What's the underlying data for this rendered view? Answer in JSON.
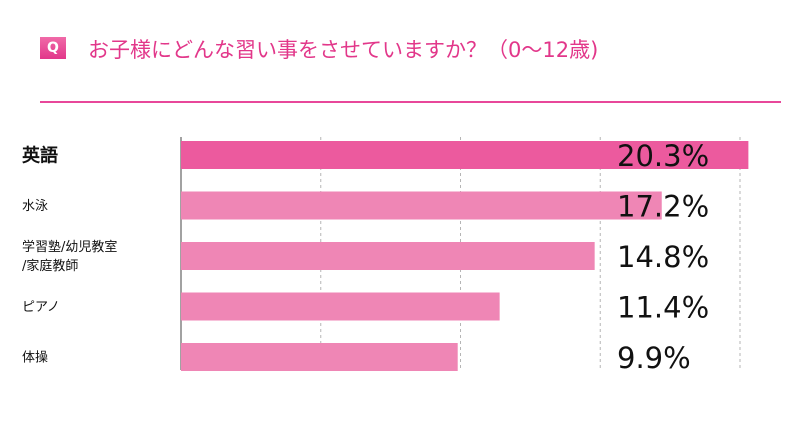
{
  "question": {
    "badge": "Q",
    "text": "お子様にどんな習い事をさせていますか？（0〜12歳)"
  },
  "colors": {
    "accent": "#e2378a",
    "bar_top": "#ec5a9e",
    "bar": "#ef86b5",
    "rule": "#e8479a"
  },
  "chart_data": {
    "type": "bar",
    "orientation": "horizontal",
    "categories": [
      [
        "英語"
      ],
      [
        "水泳"
      ],
      [
        "学習塾/幼児教室",
        "/家庭教師"
      ],
      [
        "ピアノ"
      ],
      [
        "体操"
      ]
    ],
    "values": [
      20.3,
      17.2,
      14.8,
      11.4,
      9.9
    ],
    "value_labels": [
      "20.3%",
      "17.2%",
      "14.8%",
      "11.4%",
      "9.9%"
    ],
    "xlim": [
      0,
      20
    ],
    "grid": true
  }
}
